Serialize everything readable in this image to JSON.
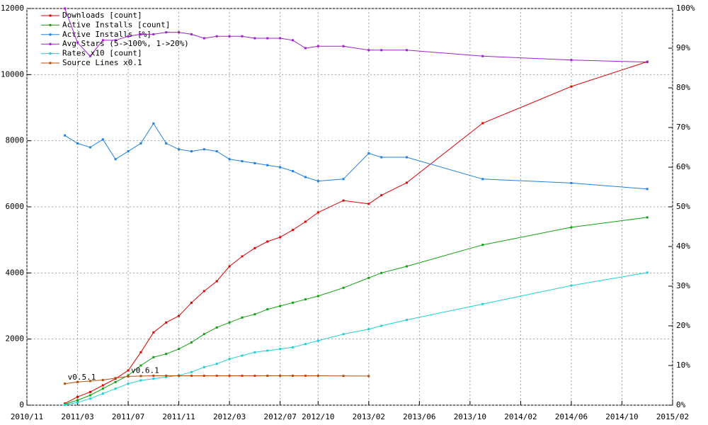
{
  "chart_data": {
    "type": "line",
    "x": [
      "2011/02",
      "2011/03",
      "2011/04",
      "2011/05",
      "2011/06",
      "2011/07",
      "2011/08",
      "2011/09",
      "2011/10",
      "2011/11",
      "2011/12",
      "2012/01",
      "2012/02",
      "2012/03",
      "2012/04",
      "2012/05",
      "2012/06",
      "2012/07",
      "2012/08",
      "2012/09",
      "2012/10",
      "2012/12",
      "2013/02",
      "2013/03",
      "2013/05",
      "2013/11",
      "2014/06",
      "2014/12"
    ],
    "xlim": [
      "2010/11",
      "2015/02"
    ],
    "xticks": [
      "2010/11",
      "2011/03",
      "2011/07",
      "2011/11",
      "2012/03",
      "2012/07",
      "2012/10",
      "2013/02",
      "2013/06",
      "2013/10",
      "2014/02",
      "2014/06",
      "2014/10",
      "2015/02"
    ],
    "ylim": [
      0,
      12000
    ],
    "yticks": [
      0,
      2000,
      4000,
      6000,
      8000,
      10000,
      12000
    ],
    "y2lim": [
      0,
      100
    ],
    "y2ticks": [
      {
        "value": 0,
        "label": "0%"
      },
      {
        "value": 10,
        "label": "10%"
      },
      {
        "value": 20,
        "label": "20%"
      },
      {
        "value": 30,
        "label": "30%"
      },
      {
        "value": 40,
        "label": "40%"
      },
      {
        "value": 50,
        "label": "50%"
      },
      {
        "value": 60,
        "label": "60%"
      },
      {
        "value": 70,
        "label": "70%"
      },
      {
        "value": 80,
        "label": "80%"
      },
      {
        "value": 90,
        "label": "90%"
      },
      {
        "value": 100,
        "label": "100%"
      }
    ],
    "grid": true,
    "legend": "top-left",
    "series": [
      {
        "name": "Downloads [count]",
        "color": "#dd0000",
        "values": [
          50,
          250,
          400,
          600,
          800,
          1050,
          1600,
          2200,
          2500,
          2700,
          3100,
          3450,
          3750,
          4200,
          4500,
          4750,
          4950,
          5080,
          5300,
          5550,
          5830,
          6190,
          6090,
          6350,
          6730,
          8530,
          9640,
          10390
        ]
      },
      {
        "name": "Active Installs [count]",
        "color": "#10a010",
        "values": [
          30,
          150,
          300,
          500,
          700,
          900,
          1200,
          1450,
          1550,
          1700,
          1900,
          2150,
          2350,
          2500,
          2650,
          2750,
          2900,
          3000,
          3100,
          3200,
          3300,
          3550,
          3850,
          4000,
          4200,
          4850,
          5380,
          5680
        ]
      },
      {
        "name": "Active Installs [%]",
        "color": "#2080e0",
        "axis": "y2",
        "values": [
          68,
          66,
          65,
          67,
          62,
          64,
          66,
          71,
          66,
          64.5,
          64,
          64.5,
          64,
          62,
          61.5,
          61,
          60.5,
          60,
          59,
          57.5,
          56.5,
          57,
          63.5,
          62.5,
          62.5,
          57,
          56,
          54.5
        ]
      },
      {
        "name": "Avg Stars (5->100%, 1->20%)",
        "color": "#a020d0",
        "axis": "y2",
        "values": [
          100,
          91.4,
          88,
          92,
          92,
          93,
          93.5,
          93.5,
          94,
          94,
          93.5,
          92.5,
          93,
          93,
          93,
          92.5,
          92.5,
          92.5,
          92,
          90,
          90.5,
          90.5,
          89.5,
          89.5,
          89.5,
          88,
          87,
          86.5
        ]
      },
      {
        "name": "Rates x10 [count]",
        "color": "#20d0d0",
        "values": [
          10,
          80,
          200,
          350,
          500,
          650,
          750,
          800,
          850,
          900,
          1000,
          1150,
          1250,
          1400,
          1500,
          1600,
          1650,
          1700,
          1750,
          1850,
          1950,
          2150,
          2300,
          2400,
          2580,
          3060,
          3620,
          4010
        ]
      },
      {
        "name": "Source Lines x0.1",
        "color": "#b05010",
        "values": [
          650,
          700,
          730,
          760,
          820,
          870,
          880,
          890,
          890,
          890,
          890,
          890,
          890,
          890,
          890,
          890,
          890,
          890,
          890,
          890,
          890,
          885,
          880,
          null,
          null,
          null,
          null,
          null
        ]
      }
    ],
    "annotations": [
      {
        "text": "v0.5.1",
        "x": "2011/02",
        "y": 580
      },
      {
        "text": "v0.6.1",
        "x": "2011/07",
        "y": 780
      }
    ]
  }
}
